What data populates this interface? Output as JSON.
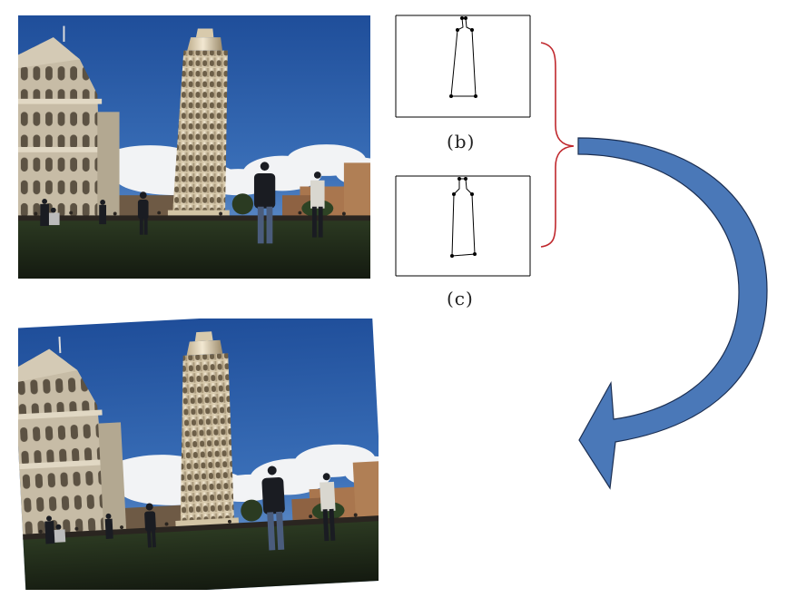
{
  "panels": {
    "b": {
      "label": "(b)"
    },
    "c": {
      "label": "(c)"
    }
  },
  "colors": {
    "sky": "#2f5fae",
    "grass": "#1f2a1a",
    "tower": "#e8dcc0",
    "bracket": "#c0282d",
    "arrow_fill": "#4a78b8",
    "arrow_stroke": "#1c2f52"
  }
}
